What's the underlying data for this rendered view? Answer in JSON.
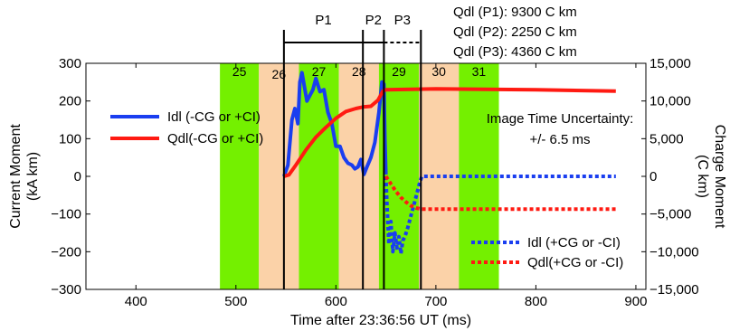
{
  "chart_data": {
    "type": "line",
    "xlabel": "Time after 23:36:56 UT (ms)",
    "ylabel_left": [
      "Current Moment",
      "(kA km)"
    ],
    "ylabel_right": [
      "Charge Moment",
      "(C km)"
    ],
    "xlim": [
      350,
      910
    ],
    "ylim_left": [
      -300,
      300
    ],
    "ylim_right": [
      -15000,
      15000
    ],
    "x_ticks": [
      400,
      500,
      600,
      700,
      800,
      900
    ],
    "y_ticks_left": [
      300,
      200,
      100,
      0,
      -100,
      -200,
      -300
    ],
    "y_tick_labels_left": [
      "300",
      "200",
      "100",
      "0",
      "−100",
      "−200",
      "−300"
    ],
    "y_ticks_right": [
      15000,
      10000,
      5000,
      0,
      -5000,
      -10000,
      -15000
    ],
    "y_tick_labels_right": [
      "15,000",
      "10,000",
      "5,000",
      "0",
      "−5,000",
      "−10,000",
      "−15,000"
    ],
    "frame_bands": [
      {
        "label": "25",
        "x0": 484,
        "x1": 523,
        "color": "#74f000"
      },
      {
        "label": "26",
        "x0": 523,
        "x1": 563,
        "color": "#fbd2a8"
      },
      {
        "label": "27",
        "x0": 563,
        "x1": 603,
        "color": "#74f000"
      },
      {
        "label": "28",
        "x0": 603,
        "x1": 643,
        "color": "#fbd2a8"
      },
      {
        "label": "29",
        "x0": 643,
        "x1": 683,
        "color": "#74f000"
      },
      {
        "label": "30",
        "x0": 683,
        "x1": 723,
        "color": "#fbd2a8"
      },
      {
        "label": "31",
        "x0": 723,
        "x1": 763,
        "color": "#74f000"
      }
    ],
    "phase_lines": [
      548,
      627,
      648,
      685
    ],
    "phases": [
      {
        "label": "P1",
        "x0": 548,
        "x1": 627,
        "style": "solid"
      },
      {
        "label": "P2",
        "x0": 627,
        "x1": 648,
        "style": "solid"
      },
      {
        "label": "P3",
        "x0": 648,
        "x1": 685,
        "style": "dashed"
      }
    ],
    "summary_lines": [
      "Qdl (P1): 9300 C km",
      "Qdl (P2): 2250 C km",
      "Qdl (P3): 4360 C km"
    ],
    "annotation_lines": [
      "Image Time Uncertainty:",
      "+/- 6.5 ms"
    ],
    "series": [
      {
        "name": "Idl (-CG or +CI)",
        "axis": "left",
        "color": "#1a3ef0",
        "style": "solid",
        "x": [
          548,
          552,
          556,
          559,
          562,
          564,
          566,
          568,
          571,
          574,
          577,
          580,
          584,
          588,
          592,
          596,
          600,
          604,
          608,
          612,
          616,
          619,
          622,
          625,
          628,
          631,
          635,
          639,
          643,
          646,
          648,
          649,
          650
        ],
        "y": [
          0,
          30,
          150,
          180,
          140,
          250,
          275,
          245,
          200,
          215,
          230,
          260,
          225,
          230,
          170,
          140,
          80,
          80,
          50,
          35,
          30,
          20,
          25,
          45,
          5,
          25,
          50,
          90,
          170,
          250,
          245,
          100,
          5
        ]
      },
      {
        "name": "Qdl(-CG or +CI)",
        "axis": "right",
        "color": "#ff1a12",
        "style": "solid",
        "x": [
          548,
          553,
          560,
          570,
          580,
          590,
          600,
          610,
          620,
          627,
          635,
          642,
          647,
          650,
          700,
          800,
          880
        ],
        "y": [
          0,
          200,
          1500,
          3500,
          5200,
          6500,
          7700,
          8600,
          9000,
          9200,
          9300,
          10100,
          11300,
          11500,
          11600,
          11500,
          11300
        ]
      },
      {
        "name": "Idl (+CG or -CI)",
        "axis": "left",
        "color": "#1a3ef0",
        "style": "dashed",
        "x": [
          650,
          651,
          653,
          655,
          657,
          659,
          661,
          663,
          665,
          667,
          669,
          672,
          675,
          678,
          681,
          684,
          686,
          700,
          800,
          880
        ],
        "y": [
          0,
          -70,
          -180,
          -120,
          -200,
          -150,
          -190,
          -160,
          -205,
          -170,
          -160,
          -135,
          -105,
          -75,
          -45,
          -15,
          0,
          0,
          0,
          0
        ]
      },
      {
        "name": "Qdl(+CG or -CI)",
        "axis": "right",
        "color": "#ff1a12",
        "style": "dashed",
        "x": [
          650,
          655,
          660,
          665,
          670,
          675,
          680,
          686,
          700,
          800,
          880
        ],
        "y": [
          0,
          -1000,
          -2000,
          -2800,
          -3400,
          -3900,
          -4200,
          -4360,
          -4360,
          -4360,
          -4360
        ]
      }
    ]
  }
}
